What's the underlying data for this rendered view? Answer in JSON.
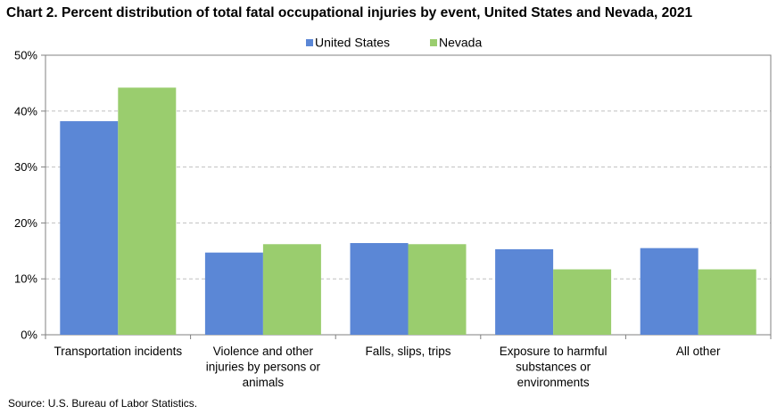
{
  "chart_data": {
    "type": "bar",
    "title": "Chart 2. Percent distribution of total fatal occupational injuries by event, United States and Nevada, 2021",
    "categories": [
      [
        "Transportation incidents"
      ],
      [
        "Violence and other",
        "injuries by persons or",
        "animals"
      ],
      [
        "Falls, slips, trips"
      ],
      [
        "Exposure to harmful",
        "substances or",
        "environments"
      ],
      [
        "All other"
      ]
    ],
    "series": [
      {
        "name": "United States",
        "color": "#5b87d6",
        "values": [
          38.2,
          14.7,
          16.4,
          15.3,
          15.5
        ]
      },
      {
        "name": "Nevada",
        "color": "#9acd6e",
        "values": [
          44.2,
          16.2,
          16.2,
          11.7,
          11.7
        ]
      }
    ],
    "y_ticks": [
      "0%",
      "10%",
      "20%",
      "30%",
      "40%",
      "50%"
    ],
    "ylim": [
      0,
      50
    ],
    "grid": true,
    "legend": "top-center"
  },
  "source": "Source: U.S. Bureau of Labor Statistics."
}
